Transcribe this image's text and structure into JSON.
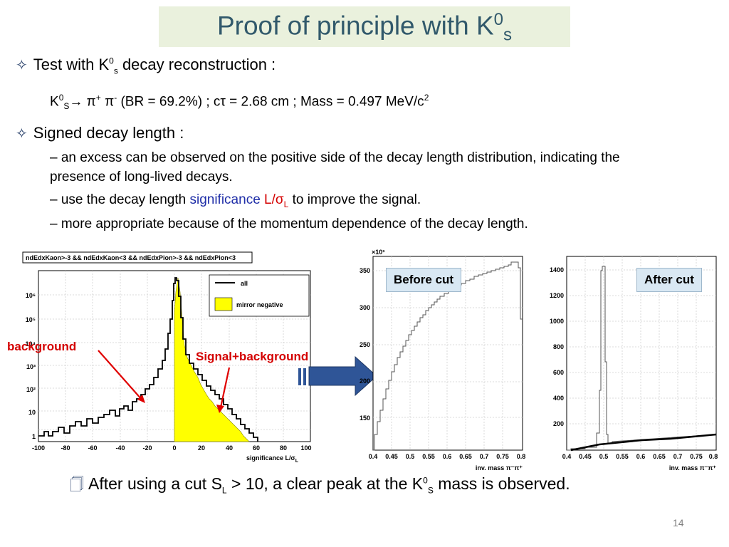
{
  "slide": {
    "title_main": "Proof of principle with K",
    "title_sup": "0",
    "title_sub": "s",
    "page_number": "14"
  },
  "bullets": {
    "b1_pre": "Test with K",
    "b1_sup": "0",
    "b1_sub": "s",
    "b1_post": " decay reconstruction :",
    "formula_pre": "K",
    "formula_sup": "0",
    "formula_sub": "S",
    "formula_arrow": "→",
    "formula_pi1": " π",
    "formula_pi1_sup": "+",
    "formula_pi2": " π",
    "formula_pi2_sup": "-",
    "formula_rest_a": " (BR = 69.2%) ; cτ = 2.68 cm  ; Mass = 0.497 MeV/c",
    "formula_rest_sup": "2",
    "b2": "Signed decay length :",
    "s1": "– an excess can be observed on the positive side of the decay length distribution, indicating the presence of long-lived decays.",
    "s2_pre": "– use the decay length ",
    "s2_sig": "significance",
    "s2_space": " ",
    "s2_L": "L/σ",
    "s2_Lsub": "L",
    "s2_post": " to improve the signal.",
    "s3": "– more appropriate because of the momentum dependence of the decay length."
  },
  "left_plot": {
    "cut_title": "ndEdxKaon>-3 && ndEdxKaon<3 && ndEdxPion>-3 && ndEdxPion<3",
    "legend_all": "all",
    "legend_mirror": "mirror negative",
    "xlabel": "significance L/σ",
    "xlabel_sub": "L",
    "xticks": [
      "-100",
      "-80",
      "-60",
      "-40",
      "-20",
      "0",
      "20",
      "40",
      "60",
      "80",
      "100"
    ],
    "yticks": [
      "1",
      "10",
      "10²",
      "10³",
      "10⁴",
      "10⁵",
      "10⁶"
    ],
    "annot_background": "background",
    "annot_signal": "Signal+background",
    "colors": {
      "fill": "#ffff00",
      "line": "#000000",
      "annot": "#d40000"
    }
  },
  "mid_plot": {
    "label": "Before cut",
    "exp": "×10³",
    "yticks": [
      "150",
      "200",
      "250",
      "300",
      "350"
    ],
    "xticks": [
      "0.4",
      "0.45",
      "0.5",
      "0.55",
      "0.6",
      "0.65",
      "0.7",
      "0.75",
      "0.8"
    ],
    "xlabel": "inv. mass π⁻π⁺"
  },
  "right_plot": {
    "label": "After cut",
    "yticks": [
      "200",
      "400",
      "600",
      "800",
      "1000",
      "1200",
      "1400"
    ],
    "xticks": [
      "0.4",
      "0.45",
      "0.5",
      "0.55",
      "0.6",
      "0.65",
      "0.7",
      "0.75",
      "0.8"
    ],
    "xlabel": "inv. mass π⁻π⁺"
  },
  "footer": {
    "pre": "After using a cut S",
    "sub": "L",
    "mid": " > 10, a clear peak at the K",
    "sup": "0",
    "sub2": "S",
    "post": " mass is observed."
  }
}
